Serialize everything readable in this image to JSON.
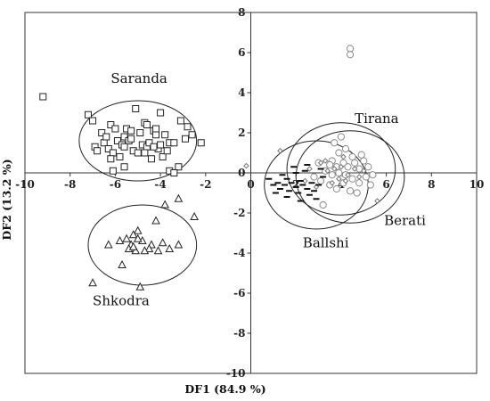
{
  "chart_data": {
    "type": "scatter",
    "title": "",
    "xlabel": "DF1 (84.9 %)",
    "ylabel": "DF2 (13.2 %)",
    "xlim": [
      -10,
      10
    ],
    "ylim": [
      -10,
      8
    ],
    "x_ticks": [
      "-10",
      "-8",
      "-6",
      "-4",
      "-2",
      "0",
      "2",
      "4",
      "6",
      "8",
      "10"
    ],
    "y_ticks": [
      "8",
      "6",
      "4",
      "2",
      "0",
      "-2",
      "-4",
      "-6",
      "-8",
      "-10"
    ],
    "grid": false,
    "legend": "none",
    "groups": [
      {
        "name": "Saranda",
        "marker": "square",
        "label_at": [
          -6.2,
          4.5
        ],
        "ellipse": {
          "cx": -5.0,
          "cy": 1.6,
          "rx": 2.6,
          "ry": 2.0
        },
        "points": [
          [
            -9.2,
            3.8
          ],
          [
            -7.2,
            2.9
          ],
          [
            -7.0,
            2.6
          ],
          [
            -6.9,
            1.3
          ],
          [
            -6.8,
            1.1
          ],
          [
            -6.6,
            2.0
          ],
          [
            -6.5,
            1.5
          ],
          [
            -6.3,
            1.2
          ],
          [
            -6.2,
            2.4
          ],
          [
            -6.1,
            1.0
          ],
          [
            -6.1,
            0.1
          ],
          [
            -6.0,
            2.2
          ],
          [
            -5.9,
            1.6
          ],
          [
            -5.8,
            0.8
          ],
          [
            -5.7,
            1.4
          ],
          [
            -5.6,
            1.8
          ],
          [
            -5.6,
            0.3
          ],
          [
            -5.5,
            2.2
          ],
          [
            -5.4,
            1.6
          ],
          [
            -5.3,
            1.7
          ],
          [
            -5.2,
            1.1
          ],
          [
            -5.1,
            3.2
          ],
          [
            -5.0,
            1.0
          ],
          [
            -4.9,
            2.0
          ],
          [
            -4.8,
            1.4
          ],
          [
            -4.7,
            2.5
          ],
          [
            -4.6,
            1.3
          ],
          [
            -4.5,
            1.5
          ],
          [
            -4.4,
            0.7
          ],
          [
            -4.3,
            2.1
          ],
          [
            -4.2,
            1.9
          ],
          [
            -4.1,
            1.2
          ],
          [
            -4.0,
            3.0
          ],
          [
            -4.0,
            1.4
          ],
          [
            -3.9,
            0.8
          ],
          [
            -3.8,
            1.9
          ],
          [
            -3.7,
            1.1
          ],
          [
            -3.6,
            0.1
          ],
          [
            -3.6,
            1.5
          ],
          [
            -3.4,
            1.5
          ],
          [
            -3.2,
            0.3
          ],
          [
            -3.1,
            2.6
          ],
          [
            -2.9,
            1.7
          ],
          [
            -2.8,
            2.3
          ],
          [
            -2.6,
            1.9
          ],
          [
            -2.2,
            1.5
          ],
          [
            -6.4,
            1.8
          ],
          [
            -5.3,
            2.1
          ],
          [
            -4.6,
            2.4
          ],
          [
            -6.2,
            0.7
          ],
          [
            -4.2,
            2.2
          ],
          [
            -4.3,
            1.3
          ],
          [
            -3.4,
            0.0
          ],
          [
            -5.6,
            1.3
          ],
          [
            -4.7,
            1.0
          ]
        ]
      },
      {
        "name": "Shkodra",
        "marker": "triangle",
        "label_at": [
          -7.0,
          -6.6
        ],
        "ellipse": {
          "cx": -4.8,
          "cy": -3.6,
          "rx": 2.4,
          "ry": 2.0
        },
        "points": [
          [
            -3.2,
            -1.3
          ],
          [
            -2.5,
            -2.2
          ],
          [
            -3.8,
            -1.6
          ],
          [
            -4.2,
            -2.4
          ],
          [
            -5.0,
            -2.9
          ],
          [
            -5.2,
            -3.1
          ],
          [
            -5.3,
            -3.6
          ],
          [
            -5.4,
            -3.8
          ],
          [
            -5.1,
            -3.9
          ],
          [
            -4.8,
            -3.4
          ],
          [
            -4.4,
            -3.6
          ],
          [
            -4.1,
            -3.9
          ],
          [
            -3.6,
            -3.8
          ],
          [
            -3.2,
            -3.6
          ],
          [
            -5.8,
            -3.4
          ],
          [
            -6.3,
            -3.6
          ],
          [
            -5.7,
            -4.6
          ],
          [
            -7.0,
            -5.5
          ],
          [
            -4.9,
            -5.7
          ],
          [
            -4.5,
            -3.8
          ],
          [
            -3.9,
            -3.5
          ],
          [
            -5.5,
            -3.3
          ],
          [
            -5.0,
            -3.3
          ],
          [
            -4.7,
            -3.9
          ],
          [
            -5.2,
            -3.7
          ]
        ]
      },
      {
        "name": "Tirana",
        "marker": "circle",
        "label_at": [
          4.6,
          2.5
        ],
        "ellipse": {
          "cx": 4.0,
          "cy": 0.2,
          "rx": 2.4,
          "ry": 2.3
        },
        "points": [
          [
            4.4,
            6.2
          ],
          [
            4.4,
            5.9
          ],
          [
            3.7,
            1.5
          ],
          [
            3.9,
            1.0
          ],
          [
            4.2,
            1.2
          ],
          [
            4.5,
            0.8
          ],
          [
            3.6,
            0.6
          ],
          [
            3.5,
            0.4
          ],
          [
            3.8,
            0.3
          ],
          [
            4.1,
            0.5
          ],
          [
            4.3,
            0.3
          ],
          [
            4.6,
            0.5
          ],
          [
            4.8,
            0.2
          ],
          [
            5.0,
            0.6
          ],
          [
            5.2,
            0.3
          ],
          [
            3.3,
            0.1
          ],
          [
            3.6,
            -0.1
          ],
          [
            3.9,
            0.0
          ],
          [
            4.2,
            -0.1
          ],
          [
            4.5,
            -0.3
          ],
          [
            4.8,
            -0.5
          ],
          [
            5.1,
            -0.2
          ],
          [
            5.4,
            -0.1
          ],
          [
            3.1,
            -0.4
          ],
          [
            3.5,
            -0.6
          ],
          [
            3.8,
            -0.8
          ],
          [
            4.1,
            -0.5
          ],
          [
            4.4,
            -0.9
          ],
          [
            4.7,
            -1.0
          ],
          [
            5.3,
            -0.6
          ],
          [
            2.8,
            -0.2
          ],
          [
            3.0,
            0.5
          ],
          [
            4.0,
            1.8
          ],
          [
            3.2,
            -1.6
          ],
          [
            4.9,
            0.9
          ]
        ]
      },
      {
        "name": "Berati",
        "marker": "diamond",
        "label_at": [
          5.9,
          -2.6
        ],
        "ellipse": {
          "cx": 4.4,
          "cy": -0.2,
          "rx": 2.4,
          "ry": 2.3
        },
        "points": [
          [
            1.3,
            1.1
          ],
          [
            2.6,
            0.2
          ],
          [
            3.1,
            0.5
          ],
          [
            3.4,
            0.1
          ],
          [
            3.7,
            0.2
          ],
          [
            4.0,
            0.3
          ],
          [
            4.3,
            -0.1
          ],
          [
            4.6,
            0.2
          ],
          [
            3.9,
            -0.3
          ],
          [
            4.2,
            -0.4
          ],
          [
            3.6,
            -0.5
          ],
          [
            2.4,
            -0.4
          ],
          [
            2.9,
            -0.7
          ],
          [
            4.8,
            -0.2
          ],
          [
            5.0,
            0.1
          ],
          [
            5.6,
            -1.4
          ],
          [
            3.3,
            0.6
          ],
          [
            4.1,
            0.8
          ]
        ]
      },
      {
        "name": "Ballshi",
        "marker": "dash",
        "label_at": [
          2.3,
          -3.7
        ],
        "ellipse": {
          "cx": 2.9,
          "cy": -0.6,
          "rx": 2.3,
          "ry": 2.2
        },
        "points": [
          [
            0.8,
            -0.3
          ],
          [
            1.0,
            -0.6
          ],
          [
            1.2,
            -0.5
          ],
          [
            1.3,
            -0.8
          ],
          [
            1.5,
            -0.6
          ],
          [
            1.6,
            -0.3
          ],
          [
            1.7,
            -0.9
          ],
          [
            1.8,
            -0.5
          ],
          [
            2.0,
            -0.7
          ],
          [
            2.1,
            -1.0
          ],
          [
            2.2,
            -0.4
          ],
          [
            2.3,
            -0.6
          ],
          [
            2.4,
            0.1
          ],
          [
            2.5,
            -0.8
          ],
          [
            2.6,
            -1.1
          ],
          [
            2.7,
            -0.5
          ],
          [
            2.8,
            -0.9
          ],
          [
            3.0,
            -0.6
          ],
          [
            3.1,
            0.2
          ],
          [
            1.4,
            -0.1
          ],
          [
            1.9,
            0.3
          ],
          [
            2.2,
            -1.4
          ],
          [
            1.1,
            -1.0
          ],
          [
            2.9,
            -1.3
          ],
          [
            3.2,
            -0.2
          ],
          [
            1.6,
            -1.2
          ],
          [
            2.0,
            0.0
          ],
          [
            2.5,
            0.4
          ]
        ]
      }
    ],
    "extra_points": [
      {
        "marker": "diamond",
        "x": -0.2,
        "y": 0.35
      }
    ]
  }
}
